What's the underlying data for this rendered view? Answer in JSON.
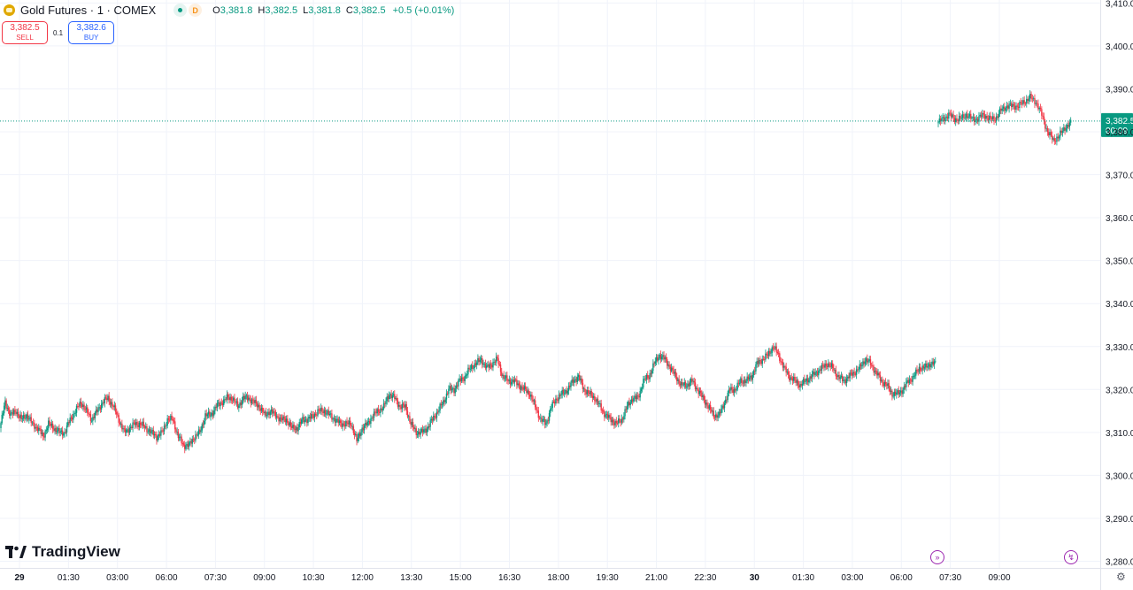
{
  "header": {
    "symbol_title": "Gold Futures · 1 · COMEX",
    "badge_letter": "D",
    "ohlc": [
      {
        "key": "O",
        "value": "3,381.8"
      },
      {
        "key": "H",
        "value": "3,382.5"
      },
      {
        "key": "L",
        "value": "3,381.8"
      },
      {
        "key": "C",
        "value": "3,382.5"
      }
    ],
    "change": "+0.5 (+0.01%)"
  },
  "trade": {
    "sell_price": "3,382.5",
    "sell_label": "SELL",
    "spread": "0.1",
    "buy_price": "3,382.6",
    "buy_label": "BUY"
  },
  "branding": {
    "name": "TradingView"
  },
  "colors": {
    "up": "#089981",
    "down": "#f23645",
    "grid": "#f0f3fa",
    "text": "#131722",
    "price_tag": "#089981"
  },
  "chart_data": {
    "type": "line",
    "ylim": [
      3275,
      3412
    ],
    "y_ticks": [
      3410.0,
      3400.0,
      3390.0,
      3380.0,
      3370.0,
      3360.0,
      3350.0,
      3340.0,
      3330.0,
      3320.0,
      3310.0,
      3300.0,
      3290.0,
      3280.0
    ],
    "y_tick_labels": [
      "3,410.0",
      "3,400.0",
      "3,390.0",
      "3,380.0",
      "3,370.0",
      "3,360.0",
      "3,350.0",
      "3,340.0",
      "3,330.0",
      "3,320.0",
      "3,310.0",
      "3,300.0",
      "3,290.0",
      "3,280.0"
    ],
    "x_ticks": [
      {
        "label": "29",
        "bold": true
      },
      {
        "label": "01:30"
      },
      {
        "label": "03:00"
      },
      {
        "label": "06:00"
      },
      {
        "label": "07:30"
      },
      {
        "label": "09:00"
      },
      {
        "label": "10:30"
      },
      {
        "label": "12:00"
      },
      {
        "label": "13:30"
      },
      {
        "label": "15:00"
      },
      {
        "label": "16:30"
      },
      {
        "label": "18:00"
      },
      {
        "label": "19:30"
      },
      {
        "label": "21:00"
      },
      {
        "label": "22:30"
      },
      {
        "label": "30",
        "bold": true
      },
      {
        "label": "01:30"
      },
      {
        "label": "03:00"
      },
      {
        "label": "06:00"
      },
      {
        "label": "07:30"
      },
      {
        "label": "09:00"
      }
    ],
    "last_price": 3382.5,
    "last_price_label": "3,382.5",
    "countdown": "00:09",
    "series": [
      {
        "segment": "before-gap",
        "points": [
          3311,
          3317,
          3314,
          3315,
          3313,
          3314,
          3312,
          3311,
          3309,
          3312,
          3311,
          3310,
          3310,
          3313,
          3315,
          3317,
          3315,
          3313,
          3315,
          3317,
          3318,
          3316,
          3313,
          3310,
          3311,
          3312,
          3312,
          3311,
          3310,
          3309,
          3310,
          3313,
          3313,
          3309,
          3307,
          3307,
          3309,
          3310,
          3314,
          3314,
          3316,
          3317,
          3318,
          3318,
          3316,
          3318,
          3318,
          3317,
          3316,
          3314,
          3315,
          3314,
          3313,
          3313,
          3311,
          3311,
          3313,
          3313,
          3314,
          3315,
          3315,
          3314,
          3313,
          3312,
          3312,
          3312,
          3308,
          3311,
          3312,
          3314,
          3315,
          3316,
          3319,
          3318,
          3316,
          3316,
          3312,
          3310,
          3310,
          3311,
          3313,
          3315,
          3317,
          3320,
          3320,
          3322,
          3323,
          3325,
          3326,
          3327,
          3325,
          3326,
          3327,
          3323,
          3322,
          3322,
          3321,
          3320,
          3319,
          3316,
          3313,
          3312,
          3316,
          3318,
          3319,
          3320,
          3322,
          3323,
          3320,
          3319,
          3318,
          3316,
          3314,
          3313,
          3312,
          3313,
          3316,
          3318,
          3318,
          3322,
          3323,
          3326,
          3328,
          3327,
          3325,
          3323,
          3321,
          3321,
          3322,
          3320,
          3318,
          3316,
          3314,
          3314,
          3317,
          3320,
          3320,
          3322,
          3322,
          3323,
          3326,
          3327,
          3328,
          3330,
          3328,
          3325,
          3323,
          3322,
          3321,
          3322,
          3323,
          3324,
          3325,
          3326,
          3325,
          3323,
          3322,
          3323,
          3324,
          3325,
          3327,
          3326,
          3324,
          3322,
          3321,
          3319,
          3319,
          3320,
          3322,
          3323,
          3325,
          3325,
          3326,
          3326
        ]
      },
      {
        "segment": "after-gap",
        "points": [
          3382,
          3383,
          3384,
          3383,
          3383,
          3384,
          3383,
          3383,
          3384,
          3383,
          3383,
          3385,
          3386,
          3386,
          3386,
          3387,
          3388,
          3387,
          3384,
          3380,
          3378,
          3379,
          3381,
          3382
        ]
      }
    ]
  }
}
